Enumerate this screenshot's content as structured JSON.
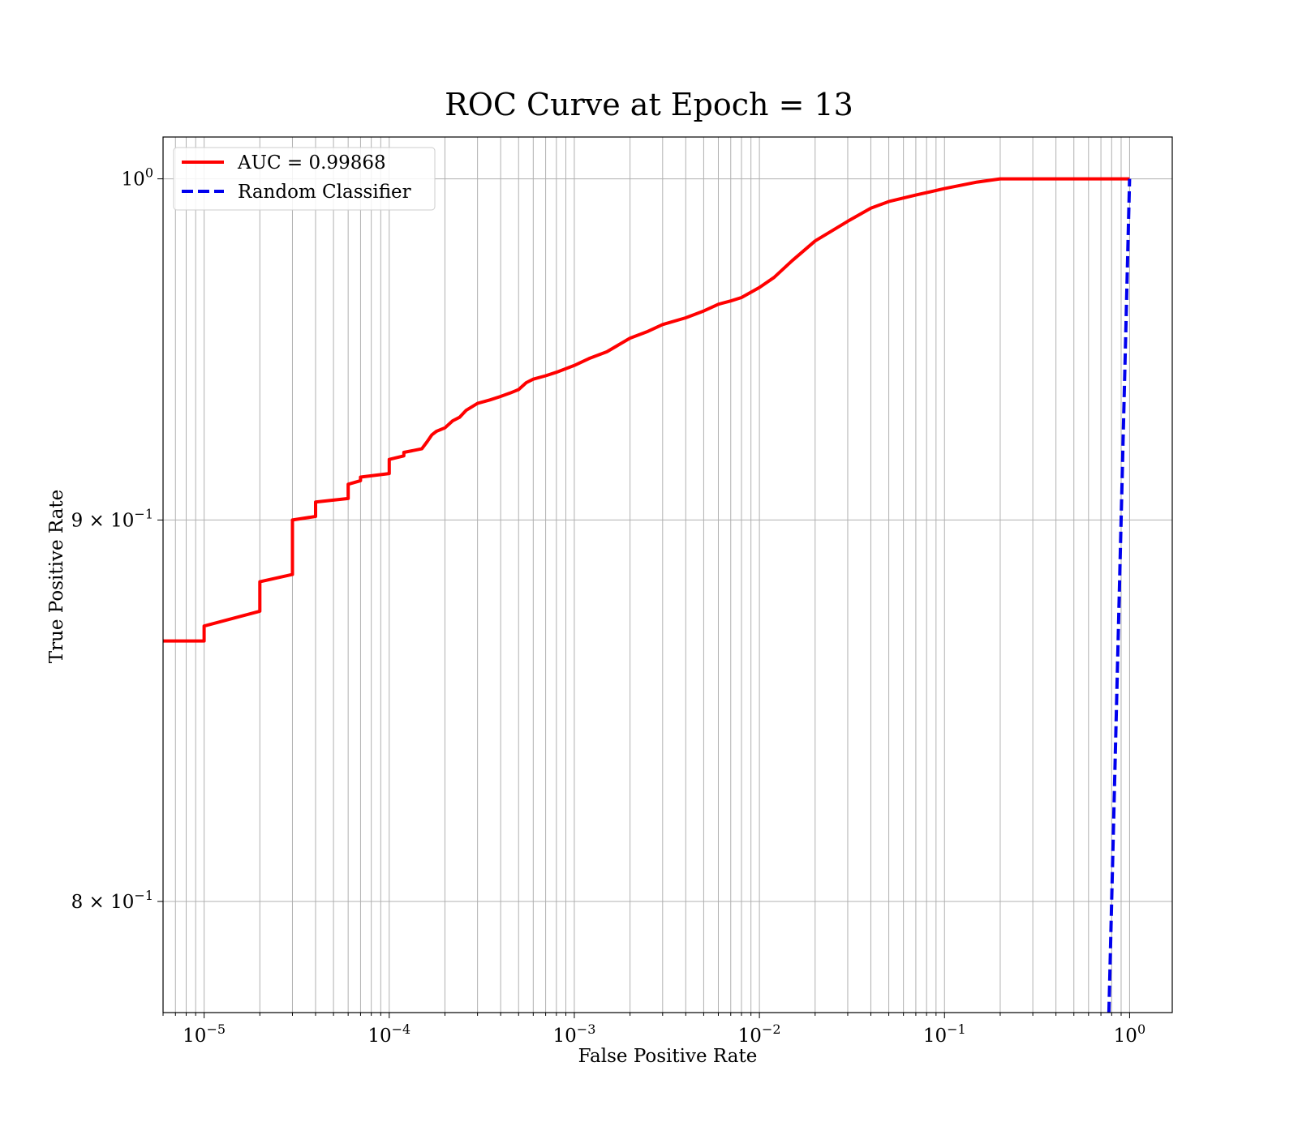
{
  "chart_data": {
    "type": "line",
    "title": "ROC Curve at Epoch = 13",
    "xlabel": "False Positive Rate",
    "ylabel": "True Positive Rate",
    "x_scale": "log",
    "y_scale": "log",
    "xlim": [
      6e-06,
      1.7
    ],
    "ylim": [
      0.773,
      1.013
    ],
    "grid": true,
    "legend_position": "top-left",
    "x_ticks": [
      {
        "value": 1e-05,
        "base": "10",
        "exp": "−5"
      },
      {
        "value": 0.0001,
        "base": "10",
        "exp": "−4"
      },
      {
        "value": 0.001,
        "base": "10",
        "exp": "−3"
      },
      {
        "value": 0.01,
        "base": "10",
        "exp": "−2"
      },
      {
        "value": 0.1,
        "base": "10",
        "exp": "−1"
      },
      {
        "value": 1,
        "base": "10",
        "exp": "0"
      }
    ],
    "y_ticks": [
      {
        "value": 1.0,
        "base": "10",
        "exp": "0"
      },
      {
        "value": 0.9,
        "base": "9 × 10",
        "exp": "−1"
      },
      {
        "value": 0.8,
        "base": "8 × 10",
        "exp": "−1"
      }
    ],
    "series": [
      {
        "name": "AUC = 0.99868",
        "color": "#ff0000",
        "style": "solid",
        "x": [
          6e-06,
          1e-05,
          1e-05,
          2e-05,
          2e-05,
          3e-05,
          3e-05,
          4e-05,
          4e-05,
          6e-05,
          6e-05,
          7e-05,
          7e-05,
          0.0001,
          0.0001,
          0.00012,
          0.00012,
          0.00015,
          0.00016,
          0.00017,
          0.00018,
          0.0002,
          0.00022,
          0.00024,
          0.00026,
          0.0003,
          0.00035,
          0.0004,
          0.00045,
          0.0005,
          0.00055,
          0.0006,
          0.0007,
          0.0008,
          0.001,
          0.0012,
          0.0015,
          0.002,
          0.0025,
          0.003,
          0.004,
          0.005,
          0.006,
          0.007,
          0.008,
          0.01,
          0.012,
          0.015,
          0.02,
          0.03,
          0.04,
          0.05,
          0.07,
          0.1,
          0.15,
          0.2,
          1
        ],
        "y": [
          0.867,
          0.867,
          0.871,
          0.875,
          0.883,
          0.885,
          0.9,
          0.901,
          0.905,
          0.906,
          0.91,
          0.911,
          0.912,
          0.913,
          0.917,
          0.918,
          0.919,
          0.92,
          0.922,
          0.924,
          0.925,
          0.926,
          0.928,
          0.929,
          0.931,
          0.933,
          0.934,
          0.935,
          0.936,
          0.937,
          0.939,
          0.94,
          0.941,
          0.942,
          0.944,
          0.946,
          0.948,
          0.952,
          0.954,
          0.956,
          0.958,
          0.96,
          0.962,
          0.963,
          0.964,
          0.967,
          0.97,
          0.975,
          0.981,
          0.987,
          0.991,
          0.993,
          0.995,
          0.997,
          0.999,
          1.0,
          1.0
        ]
      },
      {
        "name": "Random Classifier",
        "color": "#0000ee",
        "style": "dashed",
        "x": [
          0.75,
          1.0
        ],
        "y": [
          0.75,
          1.0
        ]
      }
    ]
  }
}
